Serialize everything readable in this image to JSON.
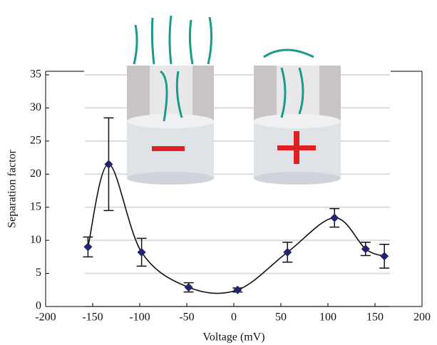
{
  "chart_data": {
    "type": "scatter",
    "x_label": "Voltage (mV)",
    "y_label": "Separation factor",
    "series": [
      {
        "name": "Separation factor",
        "color": "#23236e",
        "x": [
          -155,
          -133,
          -98,
          -48,
          4,
          57,
          107,
          140,
          160
        ],
        "values": [
          9.0,
          21.5,
          8.2,
          2.9,
          2.5,
          8.2,
          13.4,
          8.7,
          7.6
        ],
        "errors": [
          1.5,
          7.0,
          2.1,
          0.7,
          0.3,
          1.5,
          1.4,
          1.0,
          1.8
        ]
      }
    ],
    "xlim": [
      -200,
      200
    ],
    "xticks": [
      -200,
      -150,
      -100,
      -50,
      0,
      50,
      100,
      150,
      200
    ],
    "ylim": [
      0,
      35
    ],
    "yticks": [
      0,
      5,
      10,
      15,
      20,
      25,
      30,
      35
    ],
    "grid": true
  }
}
